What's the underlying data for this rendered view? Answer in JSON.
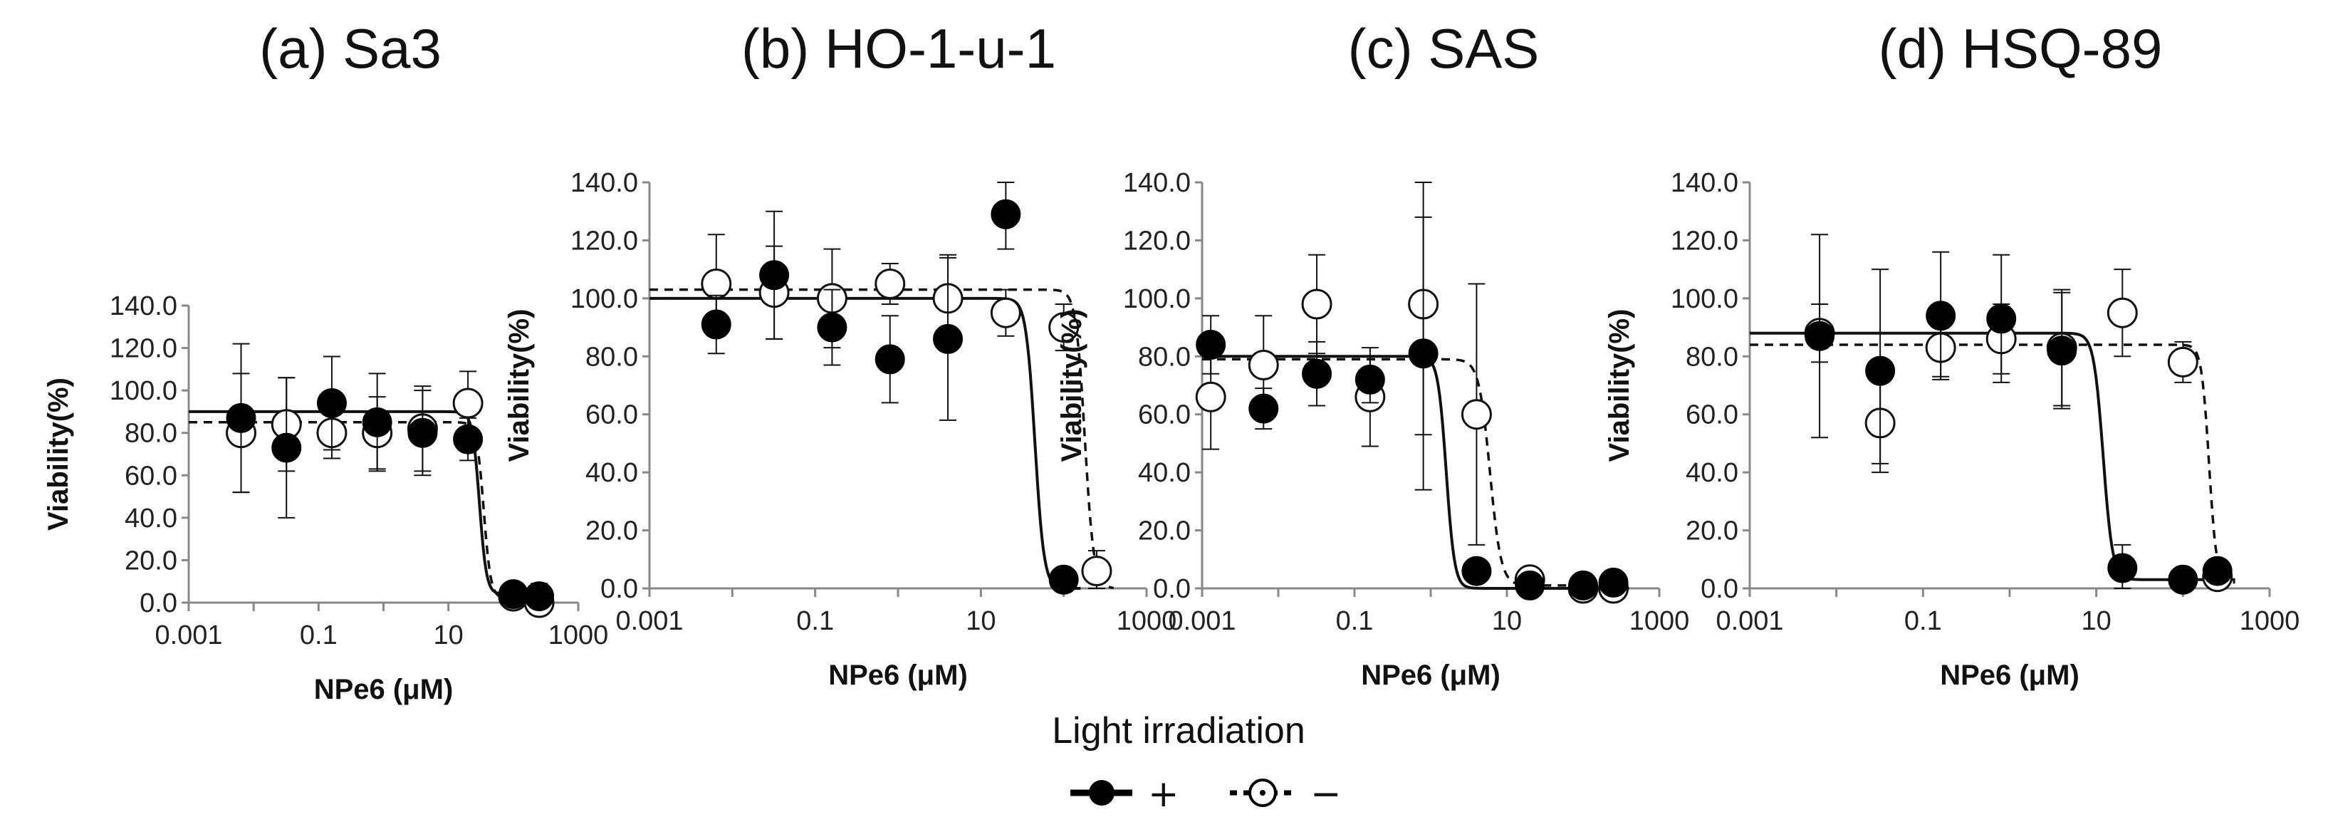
{
  "legend": {
    "title": "Light irradiation",
    "entries": [
      {
        "label": "+",
        "style": "solid-filled"
      },
      {
        "label": "−",
        "style": "dashed-open"
      }
    ]
  },
  "chart_data": [
    {
      "type": "scatter",
      "title": "(a) Sa3",
      "xlabel": "NPe6 (μM)",
      "ylabel": "Viability(%)",
      "xscale": "log",
      "xlim": [
        0.001,
        1000
      ],
      "ylim": [
        0,
        140
      ],
      "xticks": [
        "0.001",
        "0.1",
        "10",
        "1000"
      ],
      "yticks": [
        "0.0",
        "20.0",
        "40.0",
        "60.0",
        "80.0",
        "100.0",
        "120.0",
        "140.0"
      ],
      "series": [
        {
          "name": "+",
          "x": [
            0.0064,
            0.032,
            0.16,
            0.8,
            4,
            20,
            100,
            250
          ],
          "y": [
            87,
            73,
            94,
            85,
            80,
            77,
            4,
            3
          ],
          "err": [
            35,
            33,
            22,
            23,
            20,
            10,
            5,
            6
          ],
          "fit": {
            "top": 90,
            "bottom": 4,
            "ic50": 30,
            "hill": 8
          }
        },
        {
          "name": "−",
          "x": [
            0.0064,
            0.032,
            0.16,
            0.8,
            4,
            20,
            100,
            250
          ],
          "y": [
            80,
            84,
            80,
            80,
            82,
            94,
            3,
            0
          ],
          "err": [
            28,
            22,
            12,
            17,
            20,
            15,
            5,
            4
          ],
          "fit": {
            "top": 85,
            "bottom": 2,
            "ic50": 35,
            "hill": 8
          }
        }
      ]
    },
    {
      "type": "scatter",
      "title": "(b) HO-1-u-1",
      "xlabel": "NPe6 (μM)",
      "ylabel": "Viability(%)",
      "xscale": "log",
      "xlim": [
        0.001,
        1000
      ],
      "ylim": [
        0,
        140
      ],
      "xticks": [
        "0.001",
        "0.1",
        "10",
        "1000"
      ],
      "yticks": [
        "0.0",
        "20.0",
        "40.0",
        "60.0",
        "80.0",
        "100.0",
        "120.0",
        "140.0"
      ],
      "series": [
        {
          "name": "+",
          "x": [
            0.0064,
            0.032,
            0.16,
            0.8,
            4,
            20,
            100
          ],
          "y": [
            91,
            108,
            90,
            79,
            86,
            129,
            3
          ],
          "err": [
            10,
            22,
            13,
            15,
            28,
            12,
            2
          ],
          "fit": {
            "top": 100,
            "bottom": 0,
            "ic50": 45,
            "hill": 8
          }
        },
        {
          "name": "−",
          "x": [
            0.0064,
            0.032,
            0.16,
            0.8,
            4,
            20,
            100,
            250
          ],
          "y": [
            105,
            102,
            100,
            105,
            100,
            95,
            90,
            6
          ],
          "err": [
            17,
            16,
            17,
            7,
            15,
            8,
            8,
            7
          ],
          "fit": {
            "top": 103,
            "bottom": 0,
            "ic50": 180,
            "hill": 8
          }
        }
      ]
    },
    {
      "type": "scatter",
      "title": "(c) SAS",
      "xlabel": "NPe6 (μM)",
      "ylabel": "Viability(%)",
      "xscale": "log",
      "xlim": [
        0.001,
        1000
      ],
      "ylim": [
        0,
        140
      ],
      "xticks": [
        "0.001",
        "0.1",
        "10",
        "1000"
      ],
      "yticks": [
        "0.0",
        "20.0",
        "40.0",
        "60.0",
        "80.0",
        "100.0",
        "120.0",
        "140.0"
      ],
      "series": [
        {
          "name": "+",
          "x": [
            0.0013,
            0.0064,
            0.032,
            0.16,
            0.8,
            4,
            20,
            100,
            250
          ],
          "y": [
            84,
            62,
            74,
            72,
            81,
            6,
            1,
            1,
            2
          ],
          "err": [
            10,
            7,
            11,
            8,
            47,
            4,
            2,
            1,
            1
          ],
          "fit": {
            "top": 80,
            "bottom": 0,
            "ic50": 1.6,
            "hill": 8
          }
        },
        {
          "name": "−",
          "x": [
            0.0013,
            0.0064,
            0.032,
            0.16,
            0.8,
            4,
            20,
            100,
            250
          ],
          "y": [
            66,
            77,
            98,
            66,
            98,
            60,
            3,
            0,
            0
          ],
          "err": [
            18,
            17,
            17,
            17,
            45,
            45,
            3,
            1,
            1
          ],
          "fit": {
            "top": 79,
            "bottom": 1,
            "ic50": 6,
            "hill": 6
          }
        }
      ]
    },
    {
      "type": "scatter",
      "title": "(d) HSQ-89",
      "xlabel": "NPe6 (μM)",
      "ylabel": "Viability(%)",
      "xscale": "log",
      "xlim": [
        0.001,
        1000
      ],
      "ylim": [
        0,
        140
      ],
      "xticks": [
        "0.001",
        "0.1",
        "10",
        "1000"
      ],
      "yticks": [
        "0.0",
        "20.0",
        "40.0",
        "60.0",
        "80.0",
        "100.0",
        "120.0",
        "140.0"
      ],
      "series": [
        {
          "name": "+",
          "x": [
            0.0064,
            0.032,
            0.16,
            0.8,
            4,
            20,
            100,
            250
          ],
          "y": [
            87,
            75,
            94,
            93,
            82,
            7,
            3,
            6
          ],
          "err": [
            35,
            35,
            22,
            22,
            20,
            8,
            2,
            3
          ],
          "fit": {
            "top": 88,
            "bottom": 3,
            "ic50": 12,
            "hill": 8
          }
        },
        {
          "name": "−",
          "x": [
            0.0064,
            0.032,
            0.16,
            0.8,
            4,
            20,
            100,
            250
          ],
          "y": [
            88,
            57,
            83,
            86,
            83,
            95,
            78,
            4
          ],
          "err": [
            10,
            14,
            10,
            12,
            20,
            15,
            7,
            3
          ],
          "fit": {
            "top": 84,
            "bottom": 2,
            "ic50": 200,
            "hill": 10
          }
        }
      ]
    }
  ]
}
